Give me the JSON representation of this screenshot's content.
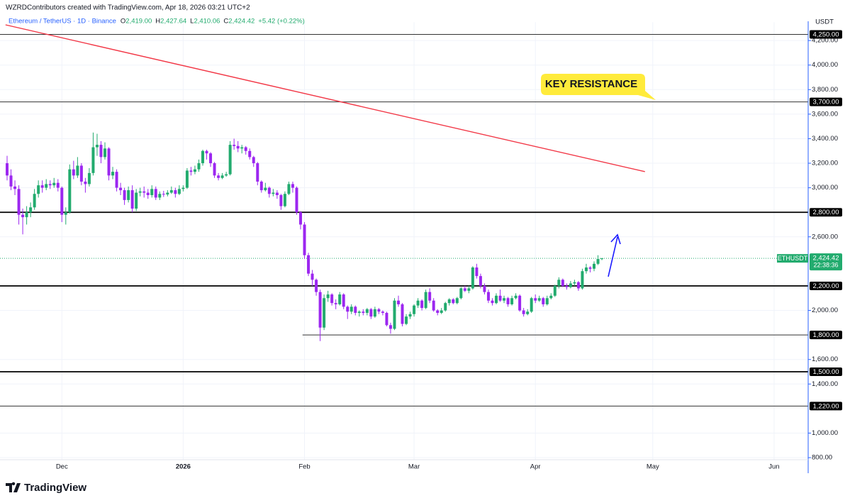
{
  "header": "WZRDContributors created with TradingView.com, Apr 18, 2026 03:21 UTC+2",
  "chart_data": {
    "type": "candlestick",
    "symbol": "Ethereum / TetherUS · 1D · Binance",
    "legend_values": [
      {
        "key": "O",
        "text": "2,419.00"
      },
      {
        "key": "H",
        "text": "2,427.64"
      },
      {
        "key": "L",
        "text": "2,410.06"
      },
      {
        "key": "C",
        "text": "2,424.42"
      },
      {
        "key": "",
        "text": "+5.42 (+0.22%)"
      }
    ],
    "up_color": "#22ab6e",
    "down_color": "#9c27f0",
    "candles": [
      [
        3200,
        3260,
        3060,
        3100
      ],
      [
        3100,
        3150,
        2980,
        3010
      ],
      [
        3010,
        3060,
        2940,
        2990
      ],
      [
        2990,
        3020,
        2700,
        2780
      ],
      [
        2780,
        2830,
        2620,
        2760
      ],
      [
        2760,
        2850,
        2700,
        2800
      ],
      [
        2800,
        2880,
        2760,
        2840
      ],
      [
        2840,
        2990,
        2820,
        2950
      ],
      [
        2950,
        3060,
        2920,
        3020
      ],
      [
        3020,
        3060,
        2960,
        3000
      ],
      [
        3000,
        3070,
        2980,
        3030
      ],
      [
        3030,
        3060,
        2990,
        3020
      ],
      [
        3020,
        3080,
        3000,
        3040
      ],
      [
        3040,
        3070,
        2970,
        3000
      ],
      [
        3000,
        3010,
        2720,
        2780
      ],
      [
        2780,
        2840,
        2700,
        2800
      ],
      [
        2800,
        3190,
        2790,
        3150
      ],
      [
        3150,
        3220,
        3070,
        3100
      ],
      [
        3100,
        3250,
        3080,
        3180
      ],
      [
        3180,
        3200,
        3020,
        3050
      ],
      [
        3050,
        3080,
        2960,
        3030
      ],
      [
        3030,
        3160,
        3010,
        3120
      ],
      [
        3120,
        3450,
        3100,
        3330
      ],
      [
        3330,
        3440,
        3260,
        3350
      ],
      [
        3350,
        3380,
        3200,
        3250
      ],
      [
        3250,
        3370,
        3230,
        3320
      ],
      [
        3320,
        3330,
        3060,
        3100
      ],
      [
        3100,
        3170,
        3070,
        3130
      ],
      [
        3130,
        3150,
        2970,
        3000
      ],
      [
        3000,
        3040,
        2940,
        2980
      ],
      [
        2980,
        3000,
        2860,
        2900
      ],
      [
        2900,
        3010,
        2880,
        2980
      ],
      [
        2980,
        3020,
        2800,
        2830
      ],
      [
        2830,
        2990,
        2810,
        2960
      ],
      [
        2960,
        3000,
        2930,
        2970
      ],
      [
        2970,
        3010,
        2920,
        2960
      ],
      [
        2960,
        2990,
        2910,
        2940
      ],
      [
        2940,
        3020,
        2920,
        2990
      ],
      [
        2990,
        3010,
        2900,
        2920
      ],
      [
        2920,
        2970,
        2900,
        2950
      ],
      [
        2950,
        2975,
        2925,
        2945
      ],
      [
        2945,
        2980,
        2930,
        2960
      ],
      [
        2960,
        3010,
        2950,
        2980
      ],
      [
        2980,
        3000,
        2920,
        2950
      ],
      [
        2950,
        3020,
        2940,
        2990
      ],
      [
        2990,
        3020,
        2970,
        3000
      ],
      [
        3000,
        3160,
        2990,
        3140
      ],
      [
        3140,
        3170,
        3100,
        3130
      ],
      [
        3130,
        3180,
        3110,
        3150
      ],
      [
        3150,
        3230,
        3130,
        3200
      ],
      [
        3200,
        3310,
        3180,
        3300
      ],
      [
        3300,
        3310,
        3230,
        3280
      ],
      [
        3280,
        3290,
        3170,
        3200
      ],
      [
        3200,
        3210,
        3080,
        3100
      ],
      [
        3100,
        3120,
        3060,
        3080
      ],
      [
        3080,
        3120,
        3070,
        3100
      ],
      [
        3100,
        3130,
        3090,
        3110
      ],
      [
        3110,
        3380,
        3100,
        3350
      ],
      [
        3350,
        3400,
        3310,
        3340
      ],
      [
        3340,
        3380,
        3290,
        3320
      ],
      [
        3320,
        3350,
        3280,
        3330
      ],
      [
        3330,
        3340,
        3270,
        3300
      ],
      [
        3300,
        3320,
        3230,
        3250
      ],
      [
        3250,
        3260,
        3170,
        3200
      ],
      [
        3200,
        3210,
        3020,
        3050
      ],
      [
        3050,
        3060,
        2960,
        2980
      ],
      [
        2980,
        3040,
        2970,
        3000
      ],
      [
        3000,
        3010,
        2920,
        2950
      ],
      [
        2950,
        2990,
        2930,
        2960
      ],
      [
        2960,
        2980,
        2910,
        2940
      ],
      [
        2940,
        2950,
        2820,
        2850
      ],
      [
        2850,
        2970,
        2840,
        2950
      ],
      [
        2950,
        3050,
        2940,
        3030
      ],
      [
        3030,
        3050,
        2960,
        3000
      ],
      [
        3000,
        3010,
        2780,
        2800
      ],
      [
        2800,
        2810,
        2660,
        2700
      ],
      [
        2700,
        2720,
        2420,
        2450
      ],
      [
        2450,
        2470,
        2280,
        2300
      ],
      [
        2300,
        2330,
        2200,
        2250
      ],
      [
        2250,
        2260,
        2120,
        2150
      ],
      [
        2150,
        2170,
        1750,
        1860
      ],
      [
        1860,
        2130,
        1840,
        2100
      ],
      [
        2100,
        2160,
        2070,
        2130
      ],
      [
        2130,
        2140,
        2040,
        2060
      ],
      [
        2060,
        2090,
        2010,
        2050
      ],
      [
        2050,
        2150,
        2040,
        2130
      ],
      [
        2130,
        2140,
        2010,
        2030
      ],
      [
        2030,
        2040,
        1930,
        1990
      ],
      [
        1990,
        2050,
        1970,
        2030
      ],
      [
        2030,
        2040,
        1960,
        1980
      ],
      [
        1980,
        2000,
        1950,
        1990
      ],
      [
        1990,
        2010,
        1960,
        1980
      ],
      [
        1980,
        2020,
        1960,
        2010
      ],
      [
        2010,
        2020,
        1930,
        1950
      ],
      [
        1950,
        2030,
        1940,
        2010
      ],
      [
        2010,
        2020,
        1970,
        1990
      ],
      [
        1990,
        2000,
        1960,
        1980
      ],
      [
        1980,
        1990,
        1870,
        1880
      ],
      [
        1880,
        1900,
        1810,
        1850
      ],
      [
        1850,
        2100,
        1840,
        2080
      ],
      [
        2080,
        2120,
        2030,
        2050
      ],
      [
        2050,
        2060,
        1870,
        1890
      ],
      [
        1890,
        1970,
        1880,
        1950
      ],
      [
        1950,
        1990,
        1930,
        1970
      ],
      [
        1970,
        2050,
        1950,
        2040
      ],
      [
        2040,
        2100,
        2020,
        2080
      ],
      [
        2080,
        2090,
        2000,
        2020
      ],
      [
        2020,
        2170,
        2010,
        2150
      ],
      [
        2150,
        2180,
        2060,
        2080
      ],
      [
        2080,
        2100,
        1990,
        2000
      ],
      [
        2000,
        2010,
        1960,
        1980
      ],
      [
        1980,
        2020,
        1970,
        2000
      ],
      [
        2000,
        2070,
        1990,
        2060
      ],
      [
        2060,
        2100,
        2040,
        2090
      ],
      [
        2090,
        2100,
        2050,
        2060
      ],
      [
        2060,
        2110,
        2050,
        2100
      ],
      [
        2100,
        2190,
        2090,
        2180
      ],
      [
        2180,
        2200,
        2150,
        2160
      ],
      [
        2160,
        2200,
        2140,
        2180
      ],
      [
        2180,
        2360,
        2170,
        2350
      ],
      [
        2350,
        2380,
        2260,
        2280
      ],
      [
        2280,
        2300,
        2180,
        2200
      ],
      [
        2200,
        2220,
        2130,
        2150
      ],
      [
        2150,
        2170,
        2060,
        2080
      ],
      [
        2080,
        2100,
        2040,
        2060
      ],
      [
        2060,
        2140,
        2050,
        2120
      ],
      [
        2120,
        2170,
        2070,
        2080
      ],
      [
        2080,
        2120,
        2060,
        2100
      ],
      [
        2100,
        2110,
        2030,
        2050
      ],
      [
        2050,
        2120,
        2040,
        2100
      ],
      [
        2100,
        2140,
        2090,
        2120
      ],
      [
        2120,
        2130,
        1990,
        2000
      ],
      [
        2000,
        2020,
        1950,
        1970
      ],
      [
        1970,
        2010,
        1960,
        1990
      ],
      [
        1990,
        2110,
        1980,
        2100
      ],
      [
        2100,
        2130,
        2060,
        2080
      ],
      [
        2080,
        2120,
        2070,
        2100
      ],
      [
        2100,
        2110,
        2030,
        2050
      ],
      [
        2050,
        2120,
        2040,
        2100
      ],
      [
        2100,
        2140,
        2090,
        2120
      ],
      [
        2120,
        2210,
        2110,
        2200
      ],
      [
        2200,
        2270,
        2180,
        2250
      ],
      [
        2250,
        2260,
        2190,
        2200
      ],
      [
        2200,
        2220,
        2170,
        2190
      ],
      [
        2190,
        2240,
        2180,
        2220
      ],
      [
        2220,
        2250,
        2200,
        2230
      ],
      [
        2230,
        2240,
        2160,
        2180
      ],
      [
        2180,
        2340,
        2170,
        2320
      ],
      [
        2320,
        2380,
        2300,
        2350
      ],
      [
        2350,
        2360,
        2310,
        2340
      ],
      [
        2340,
        2400,
        2320,
        2380
      ],
      [
        2380,
        2450,
        2370,
        2419
      ],
      [
        2419,
        2427.64,
        2410.06,
        2424.42
      ]
    ],
    "xticks": [
      "Dec",
      "2026",
      "Feb",
      "Mar",
      "Apr",
      "May",
      "Jun"
    ],
    "ylim": [
      780,
      4350
    ],
    "yticks": [
      {
        "value": 4200,
        "label": "4,200.00"
      },
      {
        "value": 4000,
        "label": "4,000.00"
      },
      {
        "value": 3800,
        "label": "3,800.00"
      },
      {
        "value": 3600,
        "label": "3,600.00"
      },
      {
        "value": 3400,
        "label": "3,400.00"
      },
      {
        "value": 3200,
        "label": "3,200.00"
      },
      {
        "value": 3000,
        "label": "3,000.00"
      },
      {
        "value": 2600,
        "label": "2,600.00"
      },
      {
        "value": 2000,
        "label": "2,000.00"
      },
      {
        "value": 1600,
        "label": "1,600.00"
      },
      {
        "value": 1400,
        "label": "1,400.00"
      },
      {
        "value": 1000,
        "label": "1,000.00"
      },
      {
        "value": 800,
        "label": "800.00"
      }
    ],
    "grid": true,
    "y_axis_label": "USDT",
    "levels": [
      {
        "value": 4250,
        "label": "4,250.00"
      },
      {
        "value": 3700,
        "label": "3,700.00"
      },
      {
        "value": 2800,
        "label": "2,800.00"
      },
      {
        "value": 2200,
        "label": "2,200.00"
      },
      {
        "value": 1800,
        "label": "1,800.00"
      },
      {
        "value": 1500,
        "label": "1,500.00"
      },
      {
        "value": 1220,
        "label": "1,220.00"
      }
    ],
    "trendline": {
      "start": 4328,
      "end": 3131,
      "color": "#f23645"
    },
    "annotation": "KEY RESISTANCE",
    "last_price": {
      "value": 2424.42,
      "symbol": "ETHUSDT",
      "label": "2,424.42",
      "countdown": "22:38:36"
    }
  },
  "footer": "TradingView"
}
